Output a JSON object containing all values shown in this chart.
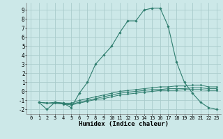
{
  "xlabel": "Humidex (Indice chaleur)",
  "background_color": "#cce8e8",
  "grid_color": "#aacccc",
  "line_color": "#2e7d6e",
  "xlim": [
    -0.5,
    23.5
  ],
  "ylim": [
    -2.5,
    9.8
  ],
  "xticks": [
    0,
    1,
    2,
    3,
    4,
    5,
    6,
    7,
    8,
    9,
    10,
    11,
    12,
    13,
    14,
    15,
    16,
    17,
    18,
    19,
    20,
    21,
    22,
    23
  ],
  "yticks": [
    -2,
    -1,
    0,
    1,
    2,
    3,
    4,
    5,
    6,
    7,
    8,
    9
  ],
  "line1_x": [
    1,
    2,
    3,
    4,
    5,
    6,
    7,
    8,
    9,
    10,
    11,
    12,
    13,
    14,
    15,
    16,
    17,
    18,
    19,
    20,
    21,
    22,
    23
  ],
  "line1_y": [
    -1.2,
    -2.0,
    -1.2,
    -1.3,
    -1.8,
    -0.2,
    1.0,
    3.0,
    4.0,
    5.0,
    6.5,
    7.8,
    7.8,
    9.0,
    9.2,
    9.2,
    7.2,
    3.3,
    1.0,
    -0.2,
    -1.2,
    -1.8,
    -2.0
  ],
  "line2_x": [
    1,
    2,
    3,
    4,
    5,
    6,
    7,
    8,
    9,
    10,
    11,
    12,
    13,
    14,
    15,
    16,
    17,
    18,
    19,
    20,
    21,
    22,
    23
  ],
  "line2_y": [
    -1.2,
    -1.3,
    -1.2,
    -1.3,
    -1.3,
    -1.0,
    -0.8,
    -0.6,
    -0.4,
    -0.2,
    0.0,
    0.1,
    0.2,
    0.3,
    0.4,
    0.5,
    0.5,
    0.6,
    0.6,
    0.7,
    0.7,
    0.5,
    0.5
  ],
  "line3_x": [
    1,
    2,
    3,
    4,
    5,
    6,
    7,
    8,
    9,
    10,
    11,
    12,
    13,
    14,
    15,
    16,
    17,
    18,
    19,
    20,
    21,
    22,
    23
  ],
  "line3_y": [
    -1.2,
    -1.3,
    -1.3,
    -1.4,
    -1.4,
    -1.2,
    -1.0,
    -0.8,
    -0.6,
    -0.4,
    -0.2,
    -0.1,
    0.0,
    0.1,
    0.2,
    0.2,
    0.3,
    0.3,
    0.3,
    0.4,
    0.4,
    0.3,
    0.3
  ],
  "line4_x": [
    1,
    2,
    3,
    4,
    5,
    6,
    7,
    8,
    9,
    10,
    11,
    12,
    13,
    14,
    15,
    16,
    17,
    18,
    19,
    20,
    21,
    22,
    23
  ],
  "line4_y": [
    -1.2,
    -1.3,
    -1.3,
    -1.4,
    -1.5,
    -1.3,
    -1.1,
    -0.9,
    -0.8,
    -0.6,
    -0.4,
    -0.3,
    -0.2,
    -0.1,
    0.0,
    0.1,
    0.1,
    0.1,
    0.2,
    0.2,
    0.2,
    0.1,
    0.1
  ]
}
